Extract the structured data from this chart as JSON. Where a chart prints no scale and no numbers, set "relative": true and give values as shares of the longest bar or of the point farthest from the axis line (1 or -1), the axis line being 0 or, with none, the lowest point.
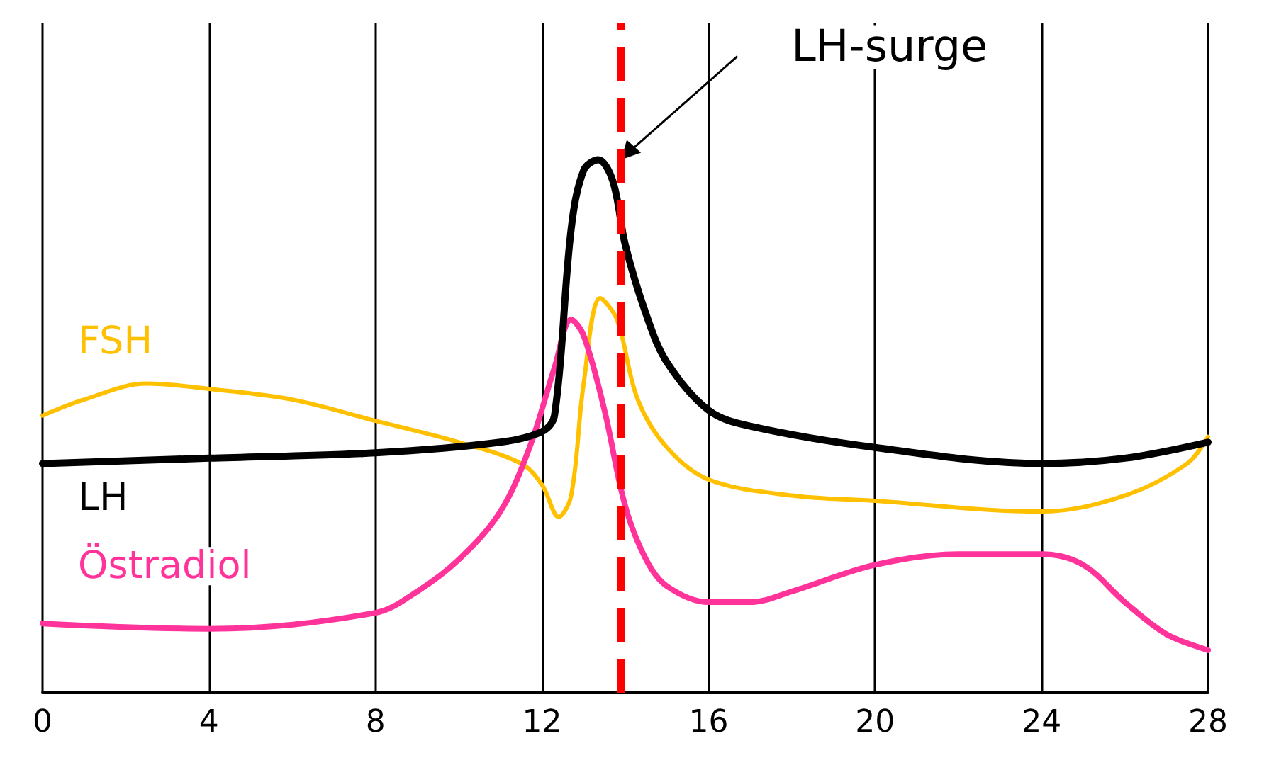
{
  "chart_data": {
    "type": "line",
    "relative": true,
    "legend": false,
    "grid": "x",
    "marker": "none",
    "line_style": "solid",
    "xlim": [
      0,
      28
    ],
    "xticks": [
      0,
      4,
      8,
      12,
      16,
      20,
      24,
      28
    ],
    "series": [
      {
        "name": "FSH",
        "color": "#ffc000",
        "x": [
          0,
          1,
          2.5,
          4,
          6,
          8,
          10,
          11.5,
          12,
          12.4,
          12.7,
          13,
          13.4,
          13.8,
          14.3,
          15,
          16,
          18,
          20,
          24,
          26,
          27.5,
          28
        ],
        "values": [
          0.52,
          0.55,
          0.58,
          0.57,
          0.55,
          0.51,
          0.47,
          0.43,
          0.39,
          0.33,
          0.37,
          0.58,
          0.74,
          0.7,
          0.55,
          0.46,
          0.4,
          0.37,
          0.36,
          0.34,
          0.37,
          0.43,
          0.48
        ]
      },
      {
        "name": "LH",
        "color": "#000000",
        "x": [
          0,
          4,
          8,
          11,
          12,
          12.3,
          12.7,
          13,
          13.35,
          13.7,
          14,
          14.5,
          15,
          16,
          17,
          20,
          24,
          26,
          28
        ],
        "values": [
          0.43,
          0.44,
          0.45,
          0.47,
          0.49,
          0.52,
          0.87,
          0.98,
          1,
          0.96,
          0.84,
          0.71,
          0.62,
          0.53,
          0.5,
          0.46,
          0.43,
          0.44,
          0.47
        ]
      },
      {
        "name": "Östradiol",
        "color": "#ff3399",
        "x": [
          0,
          4,
          8,
          9,
          10,
          11,
          11.7,
          12.3,
          12.7,
          13,
          13.5,
          14,
          14.5,
          15,
          16,
          17,
          18,
          20,
          22,
          24,
          25,
          26,
          27,
          28
        ],
        "values": [
          0.13,
          0.12,
          0.15,
          0.19,
          0.25,
          0.34,
          0.46,
          0.61,
          0.7,
          0.67,
          0.53,
          0.35,
          0.25,
          0.2,
          0.17,
          0.17,
          0.19,
          0.24,
          0.26,
          0.26,
          0.24,
          0.17,
          0.11,
          0.08
        ]
      }
    ],
    "ref_lines": [
      {
        "axis": "x",
        "value": 13.9,
        "color": "#ff0000",
        "line_style": "dashed"
      }
    ],
    "annotations": [
      {
        "text": "LH-surge",
        "x": 13.9,
        "y": 1
      }
    ]
  }
}
